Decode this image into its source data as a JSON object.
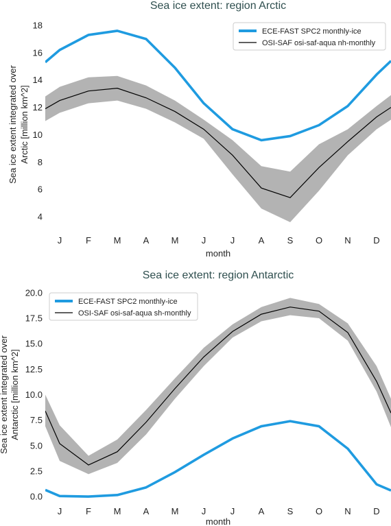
{
  "colors": {
    "model": "#1f9be0",
    "obs": "#000000",
    "band": "#b3b3b3",
    "title": "#2f4f4f",
    "legend_border": "#cccccc"
  },
  "chart_data": [
    {
      "type": "line",
      "title": "Sea ice extent: region Arctic",
      "xlabel": "month",
      "ylabel_lines": [
        "Sea ice extent integrated over",
        "Arctic [million km^2]"
      ],
      "categories": [
        "J",
        "F",
        "M",
        "A",
        "M",
        "J",
        "J",
        "A",
        "S",
        "O",
        "N",
        "D"
      ],
      "ylim": [
        3.0,
        18.5
      ],
      "yticks": [
        4,
        6,
        8,
        10,
        12,
        14,
        16,
        18
      ],
      "ytick_labels": [
        "4",
        "6",
        "8",
        "10",
        "12",
        "14",
        "16",
        "18"
      ],
      "edge_values": {
        "model": {
          "left": 15.3,
          "right": 15.4
        },
        "obs": {
          "left": 11.9,
          "right": 12.0
        },
        "band": {
          "left_low": 11.0,
          "left_high": 12.8,
          "right_low": 11.1,
          "right_high": 12.9
        }
      },
      "legend_position": "top-right",
      "series": [
        {
          "name": "ECE-FAST SPC2 monthly-ice",
          "role": "model",
          "values": [
            16.2,
            17.3,
            17.6,
            17.0,
            14.9,
            12.3,
            10.4,
            9.6,
            9.9,
            10.7,
            12.1,
            14.4
          ]
        },
        {
          "name": "OSI-SAF osi-saf-aqua nh-monthly",
          "role": "obs",
          "values": [
            12.5,
            13.2,
            13.4,
            12.7,
            11.7,
            10.4,
            8.5,
            6.1,
            5.4,
            7.6,
            9.5,
            11.3
          ],
          "band_low": [
            11.6,
            12.3,
            12.5,
            11.9,
            10.9,
            9.7,
            7.1,
            4.6,
            3.6,
            5.9,
            8.5,
            10.4
          ],
          "band_high": [
            13.5,
            14.2,
            14.3,
            13.6,
            12.5,
            11.1,
            9.6,
            7.7,
            7.3,
            9.3,
            10.4,
            12.1
          ]
        }
      ]
    },
    {
      "type": "line",
      "title": "Sea ice extent: region Antarctic",
      "xlabel": "month",
      "ylabel_lines": [
        "Sea ice extent integrated over",
        "Antarctic [million km^2]"
      ],
      "categories": [
        "J",
        "F",
        "M",
        "A",
        "M",
        "J",
        "J",
        "A",
        "S",
        "O",
        "N",
        "D"
      ],
      "ylim": [
        -0.6,
        20.6
      ],
      "yticks": [
        0,
        2.5,
        5,
        7.5,
        10,
        12.5,
        15,
        17.5,
        20
      ],
      "ytick_labels": [
        "0.0",
        "2.5",
        "5.0",
        "7.5",
        "10.0",
        "12.5",
        "15.0",
        "17.5",
        "20.0"
      ],
      "edge_values": {
        "model": {
          "left": 0.65,
          "right": 0.6
        },
        "obs": {
          "left": 8.4,
          "right": 8.2
        },
        "band": {
          "left_low": 6.9,
          "left_high": 10.0,
          "right_low": 6.8,
          "right_high": 9.6
        }
      },
      "legend_position": "top-left",
      "series": [
        {
          "name": "ECE-FAST SPC2 monthly-ice",
          "role": "model",
          "values": [
            0.05,
            0.0,
            0.15,
            0.9,
            2.4,
            4.1,
            5.7,
            6.9,
            7.4,
            6.9,
            4.7,
            1.2
          ]
        },
        {
          "name": "OSI-SAF osi-saf-aqua sh-monthly",
          "role": "obs",
          "values": [
            5.2,
            3.1,
            4.4,
            7.3,
            10.6,
            13.7,
            16.2,
            17.9,
            18.6,
            18.2,
            16.1,
            11.3
          ],
          "band_low": [
            3.5,
            2.2,
            3.3,
            6.1,
            9.6,
            12.8,
            15.6,
            17.2,
            17.8,
            17.5,
            15.3,
            10.3
          ],
          "band_high": [
            7.0,
            4.0,
            5.6,
            8.5,
            11.6,
            14.6,
            16.9,
            18.6,
            19.5,
            18.9,
            17.0,
            12.8
          ]
        }
      ]
    }
  ]
}
